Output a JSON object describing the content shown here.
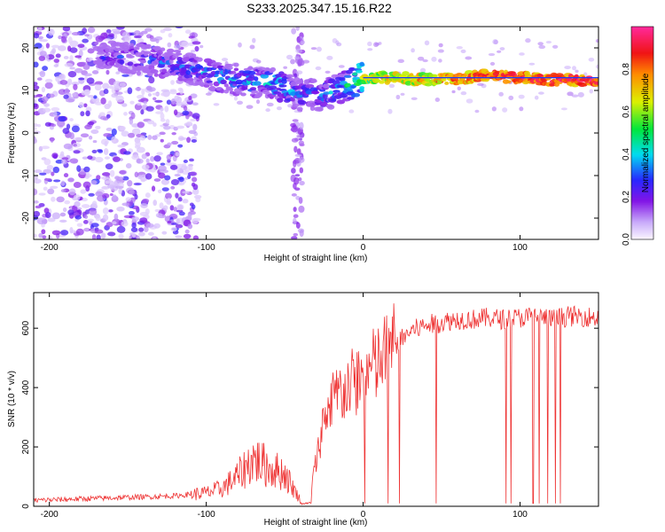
{
  "title": "S233.2025.347.15.16.R22",
  "chart_data": [
    {
      "type": "heatmap",
      "xlabel": "Height of straight line (km)",
      "ylabel": "Frequency (Hz)",
      "xlim": [
        -210,
        150
      ],
      "ylim": [
        -25,
        25
      ],
      "xticks": [
        -200,
        -100,
        0,
        100
      ],
      "yticks": [
        -20,
        -10,
        0,
        10,
        20
      ],
      "colorbar": {
        "label": "Normalized spectral amplitude",
        "range": [
          0,
          1
        ],
        "ticks": [
          0.0,
          0.2,
          0.4,
          0.6,
          0.8
        ]
      },
      "ridge_line": {
        "x_from": 0,
        "x_to": 150,
        "frequency_hz": 13
      },
      "ridge": {
        "x": [
          -160,
          -130,
          -110,
          -90,
          -70,
          -55,
          -40,
          -25,
          -10,
          0,
          20,
          40,
          60,
          80,
          100,
          120,
          150
        ],
        "frequency_hz": [
          18,
          17,
          15,
          13,
          12,
          11.5,
          9,
          9,
          11,
          13,
          13,
          12.5,
          12.8,
          13.5,
          13,
          12.5,
          12.5
        ],
        "amplitude": [
          0.2,
          0.25,
          0.3,
          0.35,
          0.35,
          0.4,
          0.3,
          0.3,
          0.4,
          0.6,
          0.7,
          0.75,
          0.8,
          0.85,
          0.85,
          0.9,
          0.9
        ]
      },
      "grid": false
    },
    {
      "type": "line",
      "xlabel": "Height of straight line (km)",
      "ylabel": "SNR (10 * v/v)",
      "xlim": [
        -210,
        150
      ],
      "ylim": [
        0,
        720
      ],
      "xticks": [
        -200,
        -100,
        0,
        100
      ],
      "yticks": [
        0,
        200,
        400,
        600
      ],
      "color": "#ee3333",
      "series": [
        {
          "x": [
            -210,
            -180,
            -150,
            -120,
            -100,
            -90,
            -80,
            -70,
            -60,
            -50,
            -40,
            -35,
            -30,
            -25,
            -20,
            -15,
            -10,
            -5,
            0,
            5,
            10,
            20,
            30,
            40,
            50,
            60,
            70,
            80,
            90,
            100,
            110,
            120,
            130,
            140,
            150
          ],
          "values": [
            20,
            25,
            30,
            35,
            45,
            60,
            100,
            160,
            130,
            110,
            20,
            10,
            150,
            300,
            350,
            380,
            400,
            420,
            440,
            460,
            480,
            540,
            590,
            610,
            620,
            630,
            630,
            635,
            630,
            635,
            640,
            630,
            640,
            640,
            635
          ]
        }
      ],
      "grid": false
    }
  ]
}
